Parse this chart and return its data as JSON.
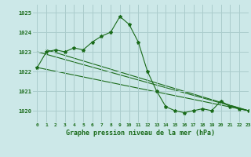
{
  "title": "Graphe pression niveau de la mer (hPa)",
  "bg_color": "#cce8e8",
  "grid_color": "#aacccc",
  "line_color": "#1a6b1a",
  "xlim": [
    -0.5,
    23
  ],
  "ylim": [
    1019.4,
    1025.4
  ],
  "yticks": [
    1020,
    1021,
    1022,
    1023,
    1024,
    1025
  ],
  "xticks": [
    0,
    1,
    2,
    3,
    4,
    5,
    6,
    7,
    8,
    9,
    10,
    11,
    12,
    13,
    14,
    15,
    16,
    17,
    18,
    19,
    20,
    21,
    22,
    23
  ],
  "series1_x": [
    0,
    1,
    2,
    3,
    4,
    5,
    6,
    7,
    8,
    9,
    10,
    11,
    12,
    13,
    14,
    15,
    16,
    17,
    18,
    19,
    20,
    21,
    22,
    23
  ],
  "series1_y": [
    1022.2,
    1023.0,
    1023.1,
    1023.0,
    1023.2,
    1023.1,
    1023.5,
    1023.8,
    1024.0,
    1024.8,
    1024.4,
    1023.5,
    1022.0,
    1021.0,
    1020.2,
    1020.0,
    1019.9,
    1020.0,
    1020.1,
    1020.0,
    1020.5,
    1020.2,
    1020.1,
    1020.0
  ],
  "series2_x": [
    0,
    23
  ],
  "series2_y": [
    1023.0,
    1020.0
  ],
  "series3_x": [
    0,
    23
  ],
  "series3_y": [
    1022.2,
    1020.0
  ],
  "series4_x": [
    1,
    23
  ],
  "series4_y": [
    1023.1,
    1020.0
  ]
}
